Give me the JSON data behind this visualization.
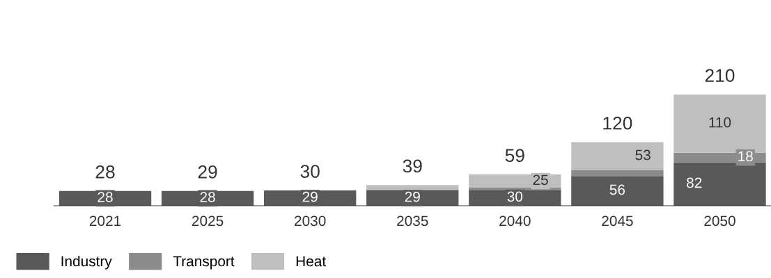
{
  "chart_data": {
    "type": "bar",
    "stacked": true,
    "categories": [
      "2021",
      "2025",
      "2030",
      "2035",
      "2040",
      "2045",
      "2050"
    ],
    "series": [
      {
        "name": "Industry",
        "color": "#595959",
        "values": [
          28,
          28,
          29,
          29,
          30,
          56,
          82
        ],
        "value_labels": [
          "28",
          "28",
          "29",
          "29",
          "30",
          "56",
          "82"
        ]
      },
      {
        "name": "Transport",
        "color": "#8c8c8c",
        "values": [
          0,
          0,
          0,
          2,
          4,
          11,
          18
        ],
        "value_labels": [
          null,
          null,
          null,
          null,
          null,
          null,
          "18"
        ]
      },
      {
        "name": "Heat",
        "color": "#bfbfbf",
        "values": [
          0,
          null,
          null,
          8,
          25,
          53,
          110
        ],
        "value_labels": [
          null,
          null,
          null,
          null,
          "25",
          "53",
          "110"
        ]
      }
    ],
    "totals": [
      "28",
      "29",
      "30",
      "39",
      "59",
      "120",
      "210"
    ],
    "legend": "bottom left",
    "grid": false
  }
}
